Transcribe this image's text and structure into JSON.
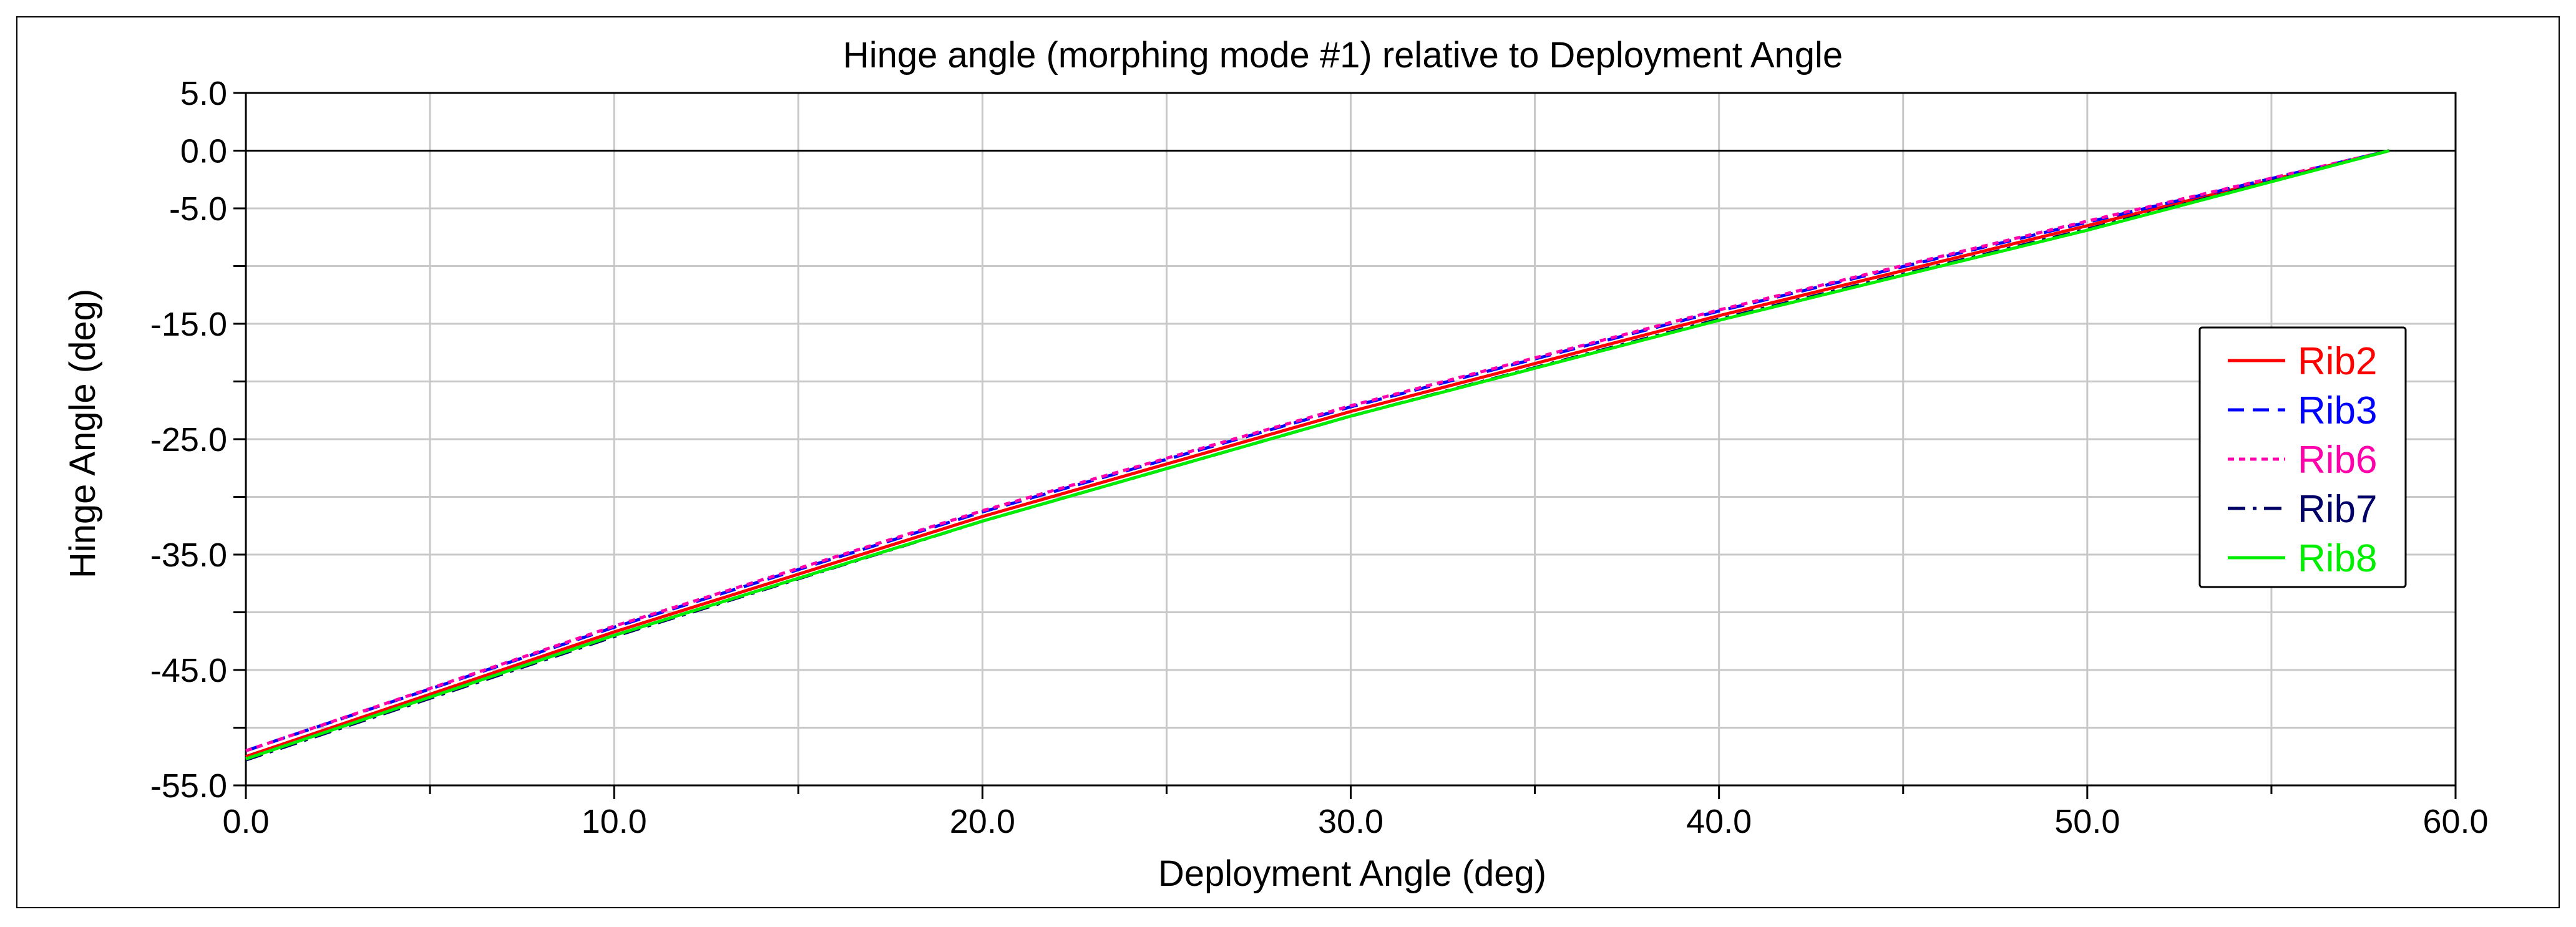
{
  "chart_data": {
    "type": "line",
    "title": "Hinge angle (morphing mode #1) relative to Deployment Angle",
    "xlabel": "Deployment Angle (deg)",
    "ylabel": "Hinge Angle (deg)",
    "xlim": [
      0.0,
      60.0
    ],
    "ylim": [
      -55.0,
      5.0
    ],
    "x_ticks": [
      0,
      10,
      20,
      30,
      40,
      50,
      60
    ],
    "x_tick_labels": [
      "0.0",
      "10.0",
      "20.0",
      "30.0",
      "40.0",
      "50.0",
      "60.0"
    ],
    "x_minor_step": 5,
    "y_ticks": [
      5,
      0,
      -5,
      -15,
      -25,
      -35,
      -45,
      -55
    ],
    "y_tick_labels": [
      "5.0",
      "0.0",
      "-5.0",
      "-15.0",
      "-25.0",
      "-35.0",
      "-45.0",
      "-55.0"
    ],
    "y_minor_step": 5,
    "grid": true,
    "zero_line": true,
    "legend_position": "right",
    "series": [
      {
        "name": "Rib2",
        "color": "#ff0000",
        "dash": "solid",
        "x": [
          0,
          10,
          20,
          30,
          40,
          50,
          58.2
        ],
        "y": [
          -52.5,
          -41.7,
          -31.7,
          -22.6,
          -14.3,
          -6.5,
          0.0
        ]
      },
      {
        "name": "Rib3",
        "color": "#0000ff",
        "dash": "dashed",
        "x": [
          0,
          10,
          20,
          30,
          40,
          50,
          58.2
        ],
        "y": [
          -52.0,
          -41.3,
          -31.3,
          -22.2,
          -13.9,
          -6.2,
          0.0
        ]
      },
      {
        "name": "Rib6",
        "color": "#ff00aa",
        "dash": "dotted",
        "x": [
          0,
          10,
          20,
          30,
          40,
          50,
          58.2
        ],
        "y": [
          -52.0,
          -41.2,
          -31.2,
          -22.1,
          -13.8,
          -6.1,
          0.0
        ]
      },
      {
        "name": "Rib7",
        "color": "#000066",
        "dash": "dashdot",
        "x": [
          0,
          10,
          20,
          30,
          40,
          50,
          58.2
        ],
        "y": [
          -52.8,
          -42.1,
          -32.1,
          -23.0,
          -14.6,
          -6.8,
          0.0
        ]
      },
      {
        "name": "Rib8",
        "color": "#00ee00",
        "dash": "solid",
        "x": [
          0,
          10,
          20,
          30,
          40,
          50,
          58.2
        ],
        "y": [
          -52.7,
          -42.0,
          -32.1,
          -23.0,
          -14.7,
          -6.9,
          0.0
        ]
      }
    ]
  }
}
